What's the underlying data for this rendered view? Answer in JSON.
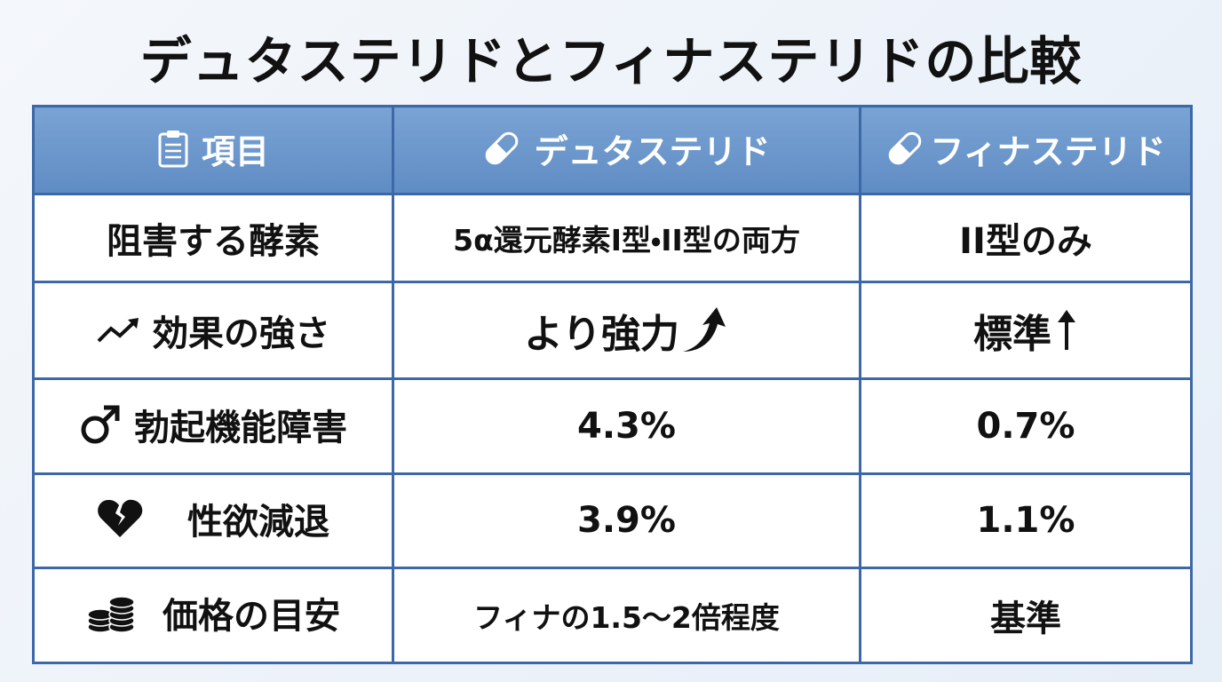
{
  "title": "デュタステリドとフィナステリドの比較",
  "table": {
    "header": [
      "項目",
      "デュタステリド",
      "フィナステリド"
    ],
    "rows": [
      [
        "阻害する酵素",
        "5α還元酵素I型・II型の両方",
        "II型のみ"
      ],
      [
        "効果の強さ",
        "より強力",
        "標準"
      ],
      [
        "勃起機能障害",
        "4.3%",
        "0.7%"
      ],
      [
        "性欲減退",
        "3.9%",
        "1.1%"
      ],
      [
        "価格の目安",
        "フィナの1.5〜2倍程度",
        "基準"
      ]
    ]
  }
}
